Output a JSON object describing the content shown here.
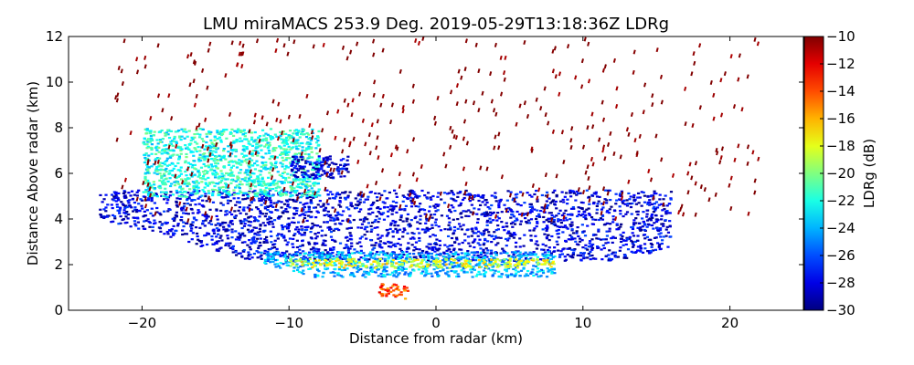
{
  "chart_data": {
    "type": "heatmap",
    "title": "LMU miraMACS 253.9 Deg. 2019-05-29T13:18:36Z  LDRg",
    "xlabel": "Distance from radar (km)",
    "ylabel": "Distance Above radar  (km)",
    "xlim": [
      -25,
      25
    ],
    "ylim": [
      0,
      12
    ],
    "x_ticks": [
      -20,
      -10,
      0,
      10,
      20
    ],
    "x_tick_labels": [
      "−20",
      "−10",
      "0",
      "10",
      "20"
    ],
    "y_ticks": [
      0,
      2,
      4,
      6,
      8,
      10,
      12
    ],
    "y_tick_labels": [
      "0",
      "2",
      "4",
      "6",
      "8",
      "10",
      "12"
    ],
    "grid": false,
    "colorbar": {
      "label": "LDRg (dB)",
      "colormap": "jet",
      "range": [
        -30,
        -10
      ],
      "ticks": [
        -10,
        -12,
        -14,
        -16,
        -18,
        -20,
        -22,
        -24,
        -26,
        -28,
        -30
      ],
      "tick_labels": [
        "−10",
        "−12",
        "−14",
        "−16",
        "−18",
        "−20",
        "−22",
        "−24",
        "−26",
        "−28",
        "−30"
      ]
    },
    "elevation_limit_deg": 10,
    "regions": [
      {
        "x_range": [
          -23,
          16
        ],
        "y_range": [
          2.2,
          5.3
        ],
        "value_db": -28
      },
      {
        "x_range": [
          -12,
          8
        ],
        "y_range": [
          1.5,
          2.6
        ],
        "value_db": -24
      },
      {
        "x_range": [
          -10,
          8
        ],
        "y_range": [
          1.9,
          2.3
        ],
        "value_db": -18
      },
      {
        "x_range": [
          -20,
          -8
        ],
        "y_range": [
          5,
          8
        ],
        "value_db": -22
      },
      {
        "x_range": [
          -10,
          -6
        ],
        "y_range": [
          5.8,
          6.8
        ],
        "value_db": -28
      },
      {
        "x_range": [
          -22,
          22
        ],
        "y_range": [
          4,
          12
        ],
        "value_db": -10
      },
      {
        "x_range": [
          -4,
          -2
        ],
        "y_range": [
          0.2,
          1.2
        ],
        "value_db": -14
      }
    ]
  }
}
